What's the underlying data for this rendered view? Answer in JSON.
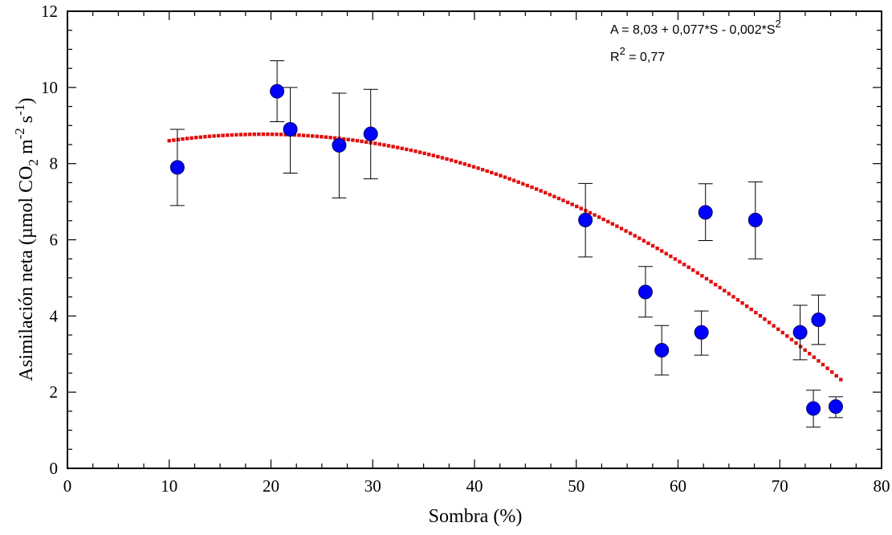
{
  "chart_data": {
    "type": "scatter",
    "xlabel": "Sombra (%)",
    "ylabel_parts": {
      "base": "Asimilación neta (µmol CO",
      "sub": "2",
      "m": " m",
      "m_exp": "-2",
      "s": " s",
      "s_exp": "-1",
      "close": ")"
    },
    "xlim": [
      0,
      80
    ],
    "ylim": [
      0,
      12
    ],
    "x_ticks": [
      0,
      10,
      20,
      30,
      40,
      50,
      60,
      70,
      80
    ],
    "y_ticks": [
      0,
      2,
      4,
      6,
      8,
      10,
      12
    ],
    "x_tick_labels": [
      "0",
      "10",
      "20",
      "30",
      "40",
      "50",
      "60",
      "70",
      "80"
    ],
    "y_tick_labels": [
      "0",
      "2",
      "4",
      "6",
      "8",
      "10",
      "12"
    ],
    "grid": false,
    "points": [
      {
        "x": 10.8,
        "y": 7.9,
        "err_low": 6.9,
        "err_high": 8.9
      },
      {
        "x": 20.6,
        "y": 9.9,
        "err_low": 9.1,
        "err_high": 10.7
      },
      {
        "x": 21.9,
        "y": 8.9,
        "err_low": 7.75,
        "err_high": 10.0
      },
      {
        "x": 26.7,
        "y": 8.48,
        "err_low": 7.1,
        "err_high": 9.85
      },
      {
        "x": 29.8,
        "y": 8.78,
        "err_low": 7.6,
        "err_high": 9.95
      },
      {
        "x": 50.9,
        "y": 6.52,
        "err_low": 5.55,
        "err_high": 7.48
      },
      {
        "x": 56.8,
        "y": 4.63,
        "err_low": 3.97,
        "err_high": 5.3
      },
      {
        "x": 58.4,
        "y": 3.1,
        "err_low": 2.45,
        "err_high": 3.75
      },
      {
        "x": 62.3,
        "y": 3.57,
        "err_low": 2.97,
        "err_high": 4.13
      },
      {
        "x": 62.7,
        "y": 6.72,
        "err_low": 5.98,
        "err_high": 7.47
      },
      {
        "x": 67.6,
        "y": 6.52,
        "err_low": 5.5,
        "err_high": 7.52
      },
      {
        "x": 72.0,
        "y": 3.57,
        "err_low": 2.85,
        "err_high": 4.28
      },
      {
        "x": 73.3,
        "y": 1.57,
        "err_low": 1.08,
        "err_high": 2.05
      },
      {
        "x": 73.8,
        "y": 3.9,
        "err_low": 3.25,
        "err_high": 4.55
      },
      {
        "x": 75.5,
        "y": 1.62,
        "err_low": 1.33,
        "err_high": 1.88
      }
    ],
    "fit": {
      "x_range": [
        10,
        76
      ],
      "a": 8.03,
      "b": 0.077,
      "c": -0.002
    },
    "equation_text": "A = 8,03 + 0,077*S - 0,002*S",
    "equation_exp": "2",
    "r2_label": "R",
    "r2_exp": "2",
    "r2_value": " = 0,77",
    "colors": {
      "point_fill": "#0000ff",
      "point_stroke": "#000066",
      "fit_line": "#e01010",
      "axis": "#000000"
    }
  }
}
